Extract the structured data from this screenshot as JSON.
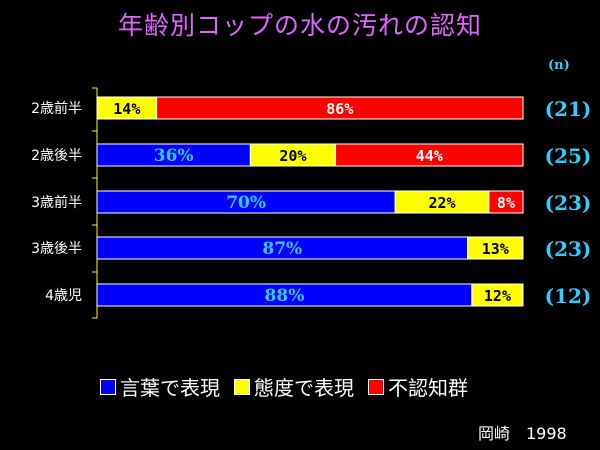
{
  "chart_data": {
    "type": "bar",
    "stacked": true,
    "orientation": "horizontal",
    "title": "年齢別コップの水の汚れの認知",
    "n_header": "(n)",
    "categories": [
      "2歳前半",
      "2歳後半",
      "3歳前半",
      "3歳後半",
      "4歳児"
    ],
    "n_values": [
      "(21)",
      "(25)",
      "(23)",
      "(23)",
      "(12)"
    ],
    "series": [
      {
        "name": "言葉で表現",
        "color": "#0000ff",
        "label_color": "#33ccff",
        "values": [
          0,
          36,
          70,
          87,
          88
        ],
        "labels": [
          "",
          "36%",
          "70%",
          "87%",
          "88%"
        ]
      },
      {
        "name": "態度で表現",
        "color": "#ffff00",
        "label_color": "#000000",
        "values": [
          14,
          20,
          22,
          13,
          12
        ],
        "labels": [
          "14%",
          "20%",
          "22%",
          "13%",
          "12%"
        ]
      },
      {
        "name": "不認知群",
        "color": "#ff0000",
        "label_color": "#ffffff",
        "values": [
          86,
          44,
          8,
          0,
          0
        ],
        "labels": [
          "86%",
          "44%",
          "8%",
          "",
          ""
        ]
      }
    ],
    "xlim": [
      0,
      100
    ],
    "legend_position": "bottom"
  },
  "source": "岡崎　1998"
}
